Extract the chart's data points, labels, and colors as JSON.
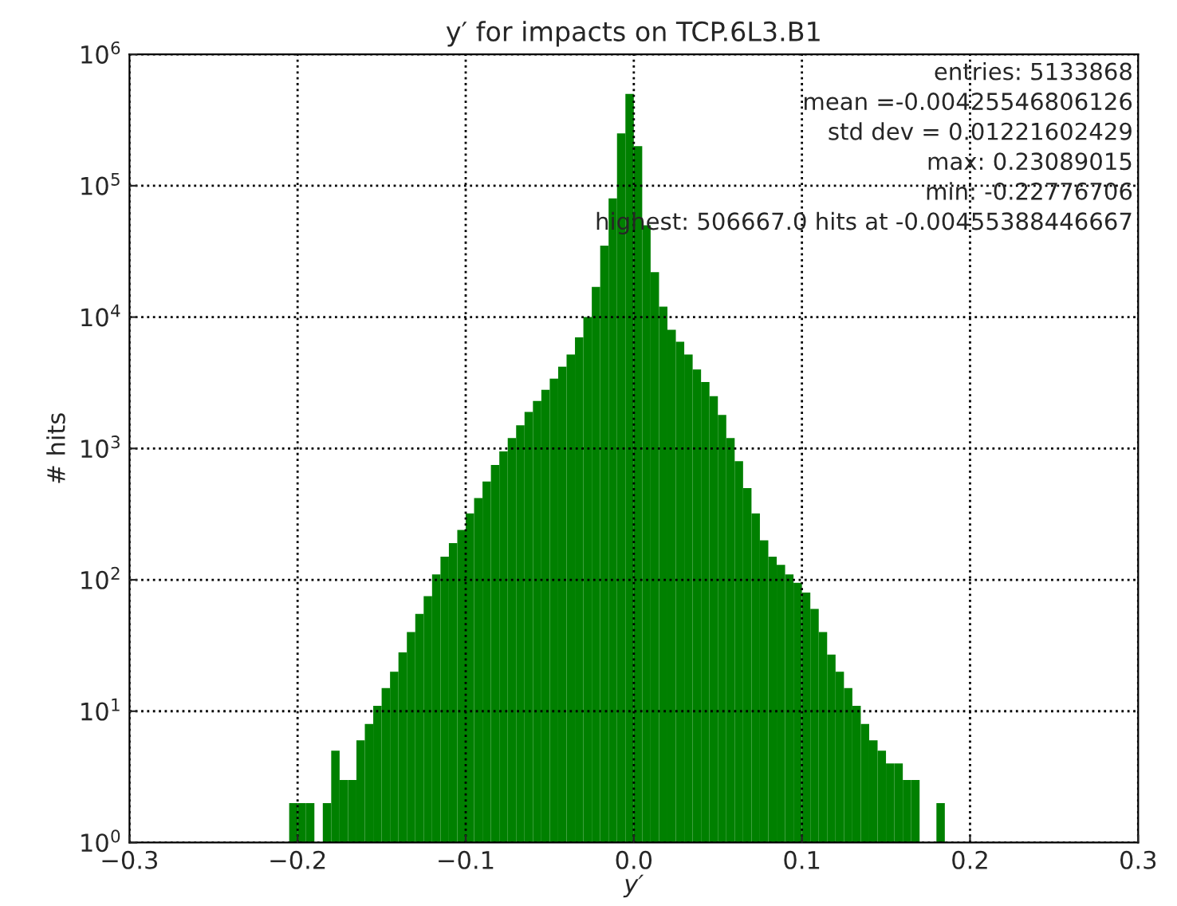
{
  "chart_data": {
    "type": "histogram",
    "title": "y′ for impacts on TCP.6L3.B1",
    "xlabel": "y′",
    "ylabel": "# hits",
    "color": "#008000",
    "bins": [
      -0.205,
      -0.2,
      -0.195,
      -0.19,
      -0.185,
      -0.18,
      -0.175,
      -0.17,
      -0.165,
      -0.16,
      -0.155,
      -0.15,
      -0.145,
      -0.14,
      -0.135,
      -0.13,
      -0.125,
      -0.12,
      -0.115,
      -0.11,
      -0.105,
      -0.1,
      -0.095,
      -0.09,
      -0.085,
      -0.08,
      -0.075,
      -0.07,
      -0.065,
      -0.06,
      -0.055,
      -0.05,
      -0.045,
      -0.04,
      -0.035,
      -0.03,
      -0.025,
      -0.02,
      -0.015,
      -0.01,
      -0.005,
      0,
      0.005,
      0.01,
      0.015,
      0.02,
      0.025,
      0.03,
      0.035,
      0.04,
      0.045,
      0.05,
      0.055,
      0.06,
      0.065,
      0.07,
      0.075,
      0.08,
      0.085,
      0.09,
      0.095,
      0.1,
      0.105,
      0.11,
      0.115,
      0.12,
      0.125,
      0.13,
      0.135,
      0.14,
      0.145,
      0.15,
      0.155,
      0.16,
      0.165,
      0.17,
      0.175,
      0.18,
      0.185,
      0.19
    ],
    "values": [
      2,
      2,
      2,
      null,
      2,
      5,
      3,
      3,
      6,
      8,
      11,
      15,
      20,
      28,
      40,
      55,
      75,
      110,
      150,
      190,
      240,
      320,
      420,
      560,
      750,
      950,
      1200,
      1500,
      1900,
      2300,
      2800,
      3400,
      4200,
      5200,
      7000,
      10000,
      17000,
      35000,
      80000,
      250000,
      500000,
      200000,
      50000,
      22000,
      12000,
      8000,
      6500,
      5200,
      4000,
      3200,
      2500,
      1800,
      1200,
      800,
      500,
      320,
      200,
      150,
      130,
      110,
      95,
      80,
      60,
      40,
      27,
      20,
      15,
      11,
      8,
      6,
      5,
      4,
      4,
      3,
      3,
      null,
      null,
      2,
      null
    ],
    "log": "y",
    "xlim": [
      -0.3,
      0.3
    ],
    "xticks": [
      {
        "value": -0.3,
        "label": "−0.3"
      },
      {
        "value": -0.2,
        "label": "−0.2"
      },
      {
        "value": -0.1,
        "label": "−0.1"
      },
      {
        "value": 0,
        "label": "0.0"
      },
      {
        "value": 0.1,
        "label": "0.1"
      },
      {
        "value": 0.2,
        "label": "0.2"
      },
      {
        "value": 0.3,
        "label": "0.3"
      }
    ],
    "ylim": [
      1,
      1000000
    ],
    "yticks": [
      {
        "value": 1,
        "label": "10$^{0}$"
      },
      {
        "value": 10,
        "label": "10$^{1}$"
      },
      {
        "value": 100,
        "label": "10$^{2}$"
      },
      {
        "value": 1000,
        "label": "10$^{3}$"
      },
      {
        "value": 10000,
        "label": "10$^{4}$"
      },
      {
        "value": 100000,
        "label": "10$^{5}$"
      },
      {
        "value": 1000000,
        "label": "10$^{6}$"
      }
    ],
    "grid": true,
    "annotations": [
      "entries: 5133868",
      "mean =-0.00425546806126",
      "std dev = 0.01221602429",
      "max: 0.23089015",
      "min: -0.22776706",
      "highest: 506667.0 hits at -0.00455388446667"
    ]
  }
}
